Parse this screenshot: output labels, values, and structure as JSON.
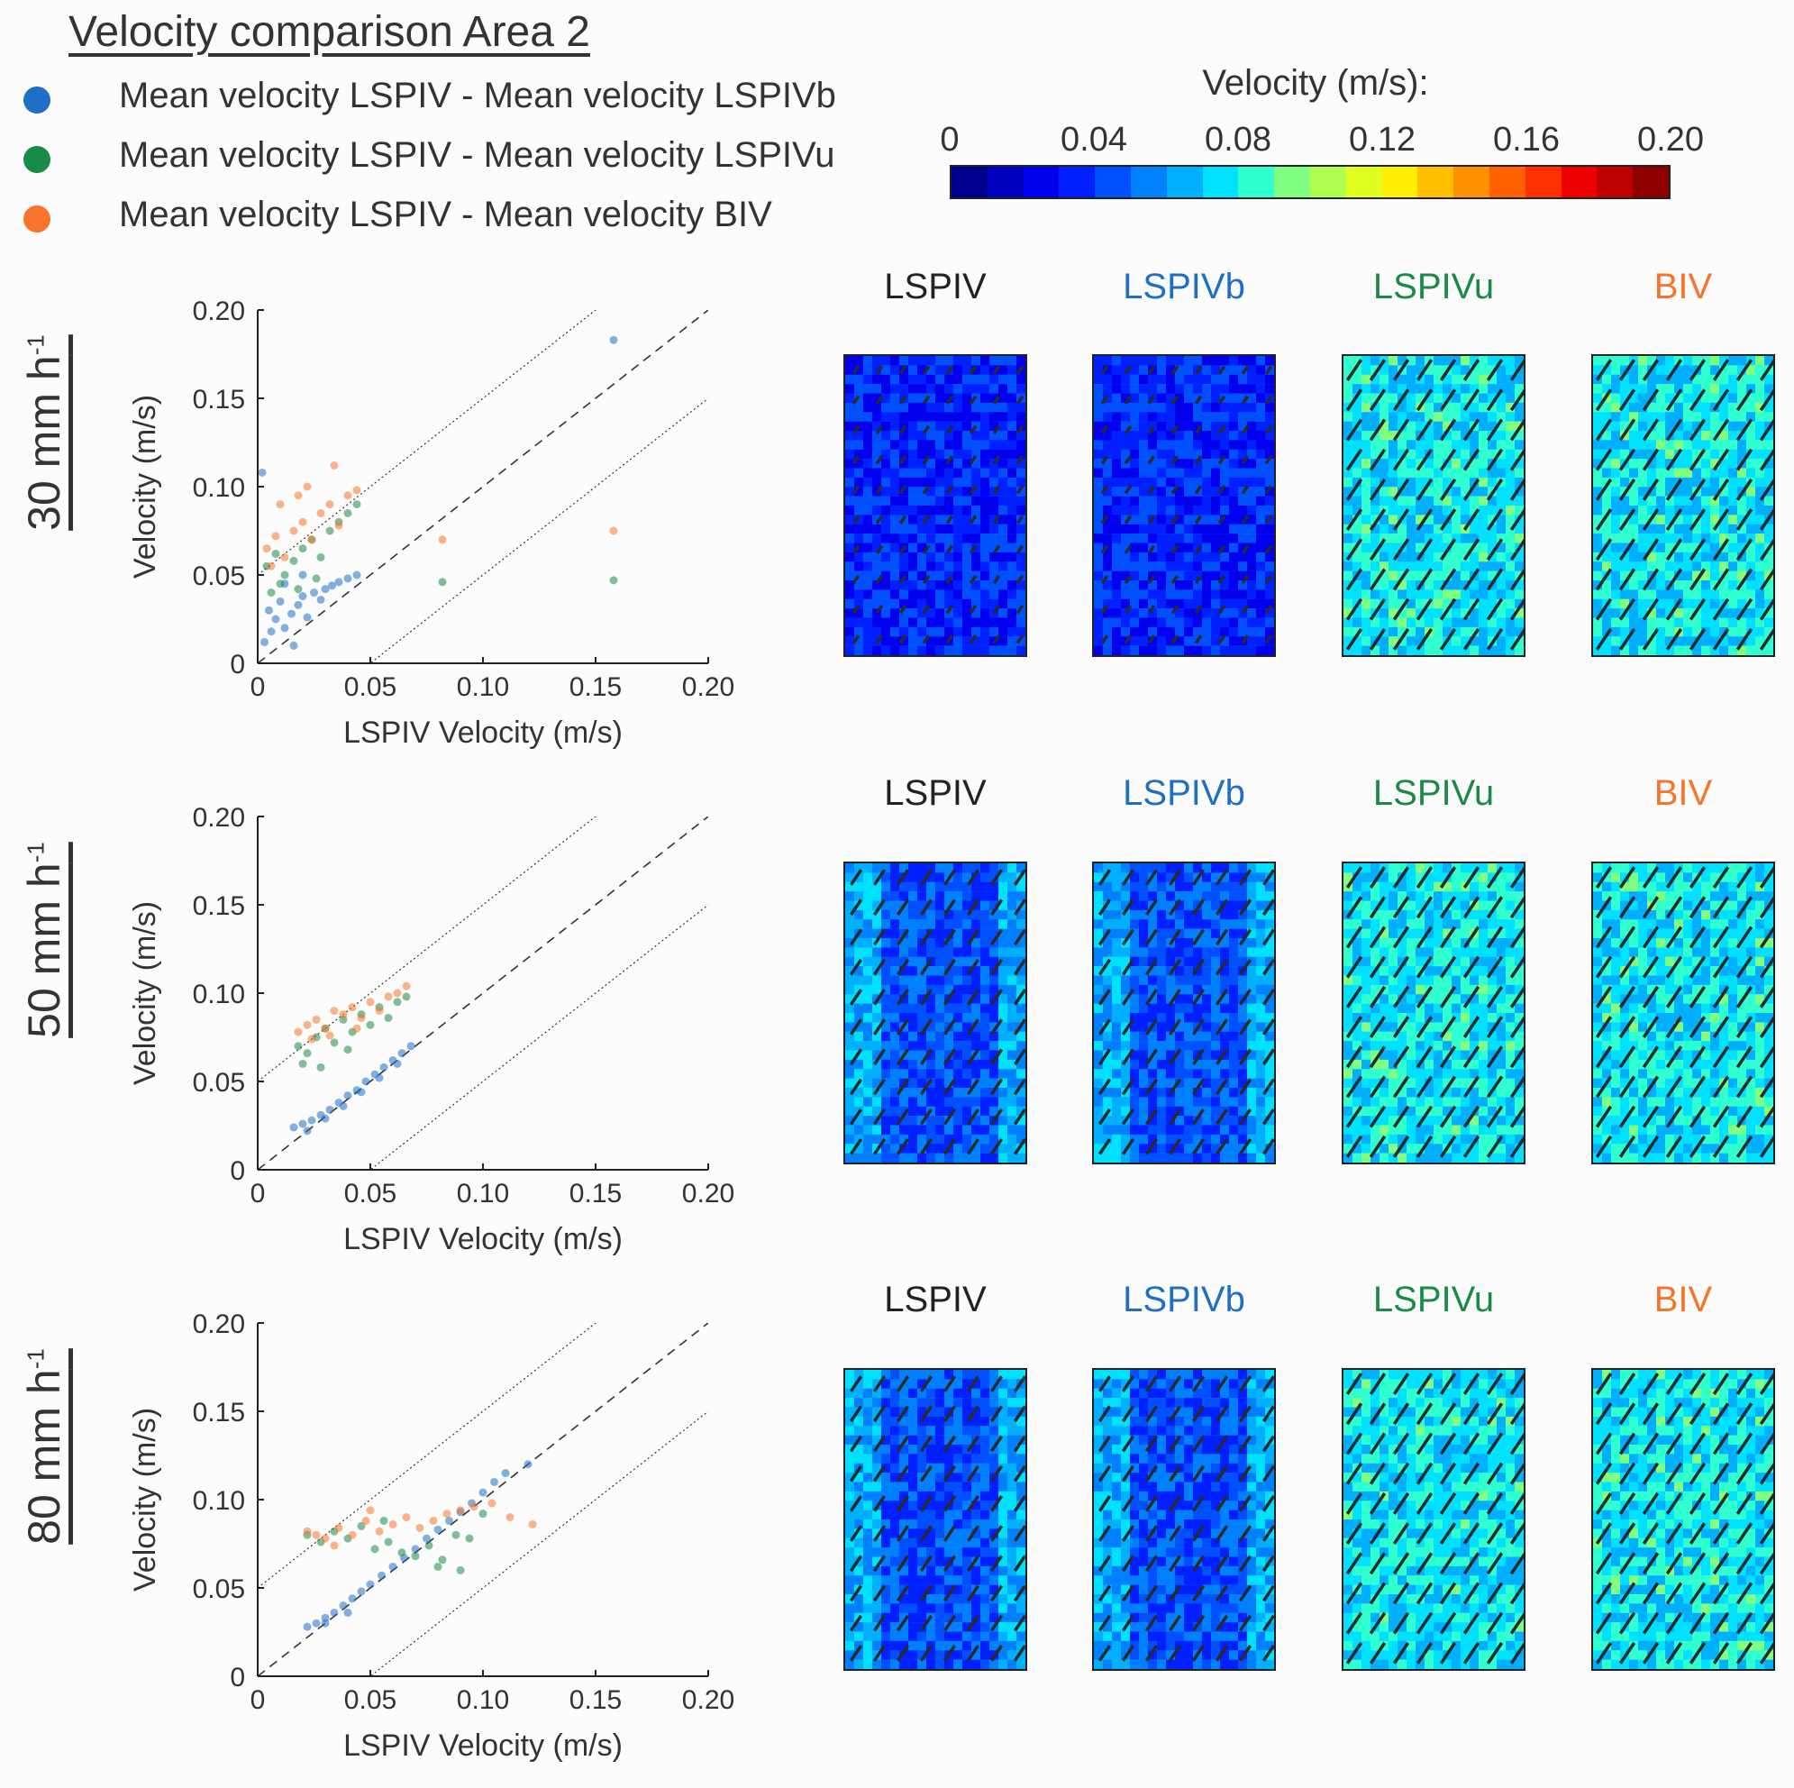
{
  "title": "Velocity comparison Area 2",
  "legend": [
    {
      "label": "Mean velocity LSPIV - Mean velocity LSPIVb",
      "color": "#1f6fc5"
    },
    {
      "label": "Mean velocity LSPIV - Mean velocity LSPIVu",
      "color": "#1a8a47"
    },
    {
      "label": "Mean velocity LSPIV - Mean velocity BIV",
      "color": "#f7742a"
    }
  ],
  "colorbar": {
    "title": "Velocity (m/s):",
    "ticks": [
      "0",
      "0.04",
      "0.08",
      "0.12",
      "0.16",
      "0.20"
    ],
    "range": [
      0,
      0.2
    ],
    "colors": [
      "#00008f",
      "#0000bf",
      "#0000ef",
      "#0020ff",
      "#0050ff",
      "#0080ff",
      "#00b0ff",
      "#00e0ff",
      "#30ffcf",
      "#80ff80",
      "#b0ff50",
      "#e0ff20",
      "#ffef00",
      "#ffbf00",
      "#ff9000",
      "#ff6000",
      "#ff3000",
      "#ef0000",
      "#bf0000",
      "#8f0000"
    ]
  },
  "rows": [
    {
      "label_main": "30 mm h",
      "label_sup": "-1"
    },
    {
      "label_main": "50 mm h",
      "label_sup": "-1"
    },
    {
      "label_main": "80 mm h",
      "label_sup": "-1"
    }
  ],
  "map_titles": [
    {
      "text": "LSPIV",
      "color": "#222222"
    },
    {
      "text": "LSPIVb",
      "color": "#1f6fc5"
    },
    {
      "text": "LSPIVu",
      "color": "#1a8a47"
    },
    {
      "text": "BIV",
      "color": "#f7742a"
    }
  ],
  "chart_data": [
    {
      "type": "scatter",
      "xlabel": "LSPIV Velocity (m/s)",
      "ylabel": "Velocity (m/s)",
      "xlim": [
        0,
        0.2
      ],
      "ylim": [
        0,
        0.2
      ],
      "xticks": [
        "0",
        "0.05",
        "0.10",
        "0.15",
        "0.20"
      ],
      "yticks": [
        "0",
        "0.05",
        "0.10",
        "0.15",
        "0.20"
      ],
      "reference_lines": [
        {
          "kind": "1:1",
          "style": "dashed",
          "offset": 0
        },
        {
          "kind": "1:1 + 0.05",
          "style": "dotted",
          "offset": 0.05
        },
        {
          "kind": "1:1 - 0.05",
          "style": "dotted",
          "offset": -0.05
        }
      ],
      "series": [
        {
          "name": "Mean velocity LSPIV - Mean velocity LSPIVb",
          "color": "#1f6fc5",
          "points": [
            [
              0.005,
              0.03
            ],
            [
              0.008,
              0.025
            ],
            [
              0.01,
              0.035
            ],
            [
              0.012,
              0.02
            ],
            [
              0.015,
              0.028
            ],
            [
              0.018,
              0.033
            ],
            [
              0.02,
              0.038
            ],
            [
              0.022,
              0.026
            ],
            [
              0.025,
              0.04
            ],
            [
              0.028,
              0.036
            ],
            [
              0.03,
              0.042
            ],
            [
              0.033,
              0.044
            ],
            [
              0.036,
              0.046
            ],
            [
              0.04,
              0.048
            ],
            [
              0.044,
              0.05
            ],
            [
              0.003,
              0.012
            ],
            [
              0.006,
              0.018
            ],
            [
              0.012,
              0.045
            ],
            [
              0.016,
              0.01
            ],
            [
              0.02,
              0.05
            ],
            [
              0.002,
              0.108
            ],
            [
              0.158,
              0.183
            ]
          ]
        },
        {
          "name": "Mean velocity LSPIV - Mean velocity LSPIVu",
          "color": "#1a8a47",
          "points": [
            [
              0.004,
              0.055
            ],
            [
              0.008,
              0.062
            ],
            [
              0.012,
              0.05
            ],
            [
              0.016,
              0.058
            ],
            [
              0.02,
              0.065
            ],
            [
              0.024,
              0.07
            ],
            [
              0.028,
              0.06
            ],
            [
              0.032,
              0.075
            ],
            [
              0.036,
              0.08
            ],
            [
              0.04,
              0.085
            ],
            [
              0.044,
              0.09
            ],
            [
              0.01,
              0.045
            ],
            [
              0.018,
              0.042
            ],
            [
              0.026,
              0.048
            ],
            [
              0.006,
              0.04
            ],
            [
              0.082,
              0.046
            ],
            [
              0.158,
              0.047
            ]
          ]
        },
        {
          "name": "Mean velocity LSPIV - Mean velocity BIV",
          "color": "#f7742a",
          "points": [
            [
              0.004,
              0.065
            ],
            [
              0.008,
              0.072
            ],
            [
              0.012,
              0.06
            ],
            [
              0.016,
              0.075
            ],
            [
              0.02,
              0.08
            ],
            [
              0.024,
              0.07
            ],
            [
              0.028,
              0.085
            ],
            [
              0.032,
              0.09
            ],
            [
              0.036,
              0.078
            ],
            [
              0.04,
              0.095
            ],
            [
              0.044,
              0.098
            ],
            [
              0.01,
              0.09
            ],
            [
              0.018,
              0.095
            ],
            [
              0.006,
              0.055
            ],
            [
              0.022,
              0.1
            ],
            [
              0.034,
              0.112
            ],
            [
              0.082,
              0.07
            ],
            [
              0.158,
              0.075
            ]
          ]
        }
      ]
    },
    {
      "type": "scatter",
      "xlabel": "LSPIV Velocity (m/s)",
      "ylabel": "Velocity (m/s)",
      "xlim": [
        0,
        0.2
      ],
      "ylim": [
        0,
        0.2
      ],
      "xticks": [
        "0",
        "0.05",
        "0.10",
        "0.15",
        "0.20"
      ],
      "yticks": [
        "0",
        "0.05",
        "0.10",
        "0.15",
        "0.20"
      ],
      "reference_lines": [
        {
          "kind": "1:1",
          "style": "dashed",
          "offset": 0
        },
        {
          "kind": "1:1 + 0.05",
          "style": "dotted",
          "offset": 0.05
        },
        {
          "kind": "1:1 - 0.05",
          "style": "dotted",
          "offset": -0.05
        }
      ],
      "series": [
        {
          "name": "Mean velocity LSPIV - Mean velocity LSPIVb",
          "color": "#1f6fc5",
          "points": [
            [
              0.016,
              0.024
            ],
            [
              0.02,
              0.026
            ],
            [
              0.024,
              0.028
            ],
            [
              0.028,
              0.031
            ],
            [
              0.032,
              0.034
            ],
            [
              0.036,
              0.038
            ],
            [
              0.04,
              0.042
            ],
            [
              0.044,
              0.045
            ],
            [
              0.048,
              0.05
            ],
            [
              0.052,
              0.054
            ],
            [
              0.056,
              0.058
            ],
            [
              0.06,
              0.062
            ],
            [
              0.064,
              0.066
            ],
            [
              0.068,
              0.07
            ],
            [
              0.022,
              0.022
            ],
            [
              0.03,
              0.029
            ],
            [
              0.038,
              0.036
            ],
            [
              0.046,
              0.044
            ],
            [
              0.054,
              0.052
            ],
            [
              0.062,
              0.06
            ]
          ]
        },
        {
          "name": "Mean velocity LSPIV - Mean velocity LSPIVu",
          "color": "#1a8a47",
          "points": [
            [
              0.018,
              0.07
            ],
            [
              0.022,
              0.066
            ],
            [
              0.026,
              0.075
            ],
            [
              0.03,
              0.08
            ],
            [
              0.034,
              0.072
            ],
            [
              0.038,
              0.085
            ],
            [
              0.042,
              0.078
            ],
            [
              0.046,
              0.088
            ],
            [
              0.05,
              0.082
            ],
            [
              0.054,
              0.092
            ],
            [
              0.058,
              0.086
            ],
            [
              0.062,
              0.095
            ],
            [
              0.066,
              0.098
            ],
            [
              0.02,
              0.06
            ],
            [
              0.028,
              0.058
            ],
            [
              0.04,
              0.068
            ]
          ]
        },
        {
          "name": "Mean velocity LSPIV - Mean velocity BIV",
          "color": "#f7742a",
          "points": [
            [
              0.018,
              0.078
            ],
            [
              0.022,
              0.082
            ],
            [
              0.026,
              0.085
            ],
            [
              0.03,
              0.08
            ],
            [
              0.034,
              0.09
            ],
            [
              0.038,
              0.088
            ],
            [
              0.042,
              0.092
            ],
            [
              0.046,
              0.086
            ],
            [
              0.05,
              0.095
            ],
            [
              0.054,
              0.09
            ],
            [
              0.058,
              0.098
            ],
            [
              0.062,
              0.1
            ],
            [
              0.066,
              0.104
            ],
            [
              0.024,
              0.074
            ],
            [
              0.032,
              0.076
            ],
            [
              0.044,
              0.08
            ]
          ]
        }
      ]
    },
    {
      "type": "scatter",
      "xlabel": "LSPIV Velocity (m/s)",
      "ylabel": "Velocity (m/s)",
      "xlim": [
        0,
        0.2
      ],
      "ylim": [
        0,
        0.2
      ],
      "xticks": [
        "0",
        "0.05",
        "0.10",
        "0.15",
        "0.20"
      ],
      "yticks": [
        "0",
        "0.05",
        "0.10",
        "0.15",
        "0.20"
      ],
      "reference_lines": [
        {
          "kind": "1:1",
          "style": "dashed",
          "offset": 0
        },
        {
          "kind": "1:1 + 0.05",
          "style": "dotted",
          "offset": 0.05
        },
        {
          "kind": "1:1 - 0.05",
          "style": "dotted",
          "offset": -0.05
        }
      ],
      "series": [
        {
          "name": "Mean velocity LSPIV - Mean velocity LSPIVb",
          "color": "#1f6fc5",
          "points": [
            [
              0.022,
              0.028
            ],
            [
              0.026,
              0.03
            ],
            [
              0.03,
              0.033
            ],
            [
              0.034,
              0.036
            ],
            [
              0.038,
              0.04
            ],
            [
              0.042,
              0.044
            ],
            [
              0.046,
              0.048
            ],
            [
              0.05,
              0.052
            ],
            [
              0.055,
              0.057
            ],
            [
              0.06,
              0.062
            ],
            [
              0.065,
              0.067
            ],
            [
              0.07,
              0.072
            ],
            [
              0.075,
              0.078
            ],
            [
              0.08,
              0.083
            ],
            [
              0.085,
              0.088
            ],
            [
              0.09,
              0.093
            ],
            [
              0.095,
              0.098
            ],
            [
              0.1,
              0.104
            ],
            [
              0.105,
              0.11
            ],
            [
              0.11,
              0.115
            ],
            [
              0.12,
              0.12
            ],
            [
              0.03,
              0.03
            ],
            [
              0.04,
              0.036
            ]
          ]
        },
        {
          "name": "Mean velocity LSPIV - Mean velocity LSPIVu",
          "color": "#1a8a47",
          "points": [
            [
              0.022,
              0.08
            ],
            [
              0.028,
              0.076
            ],
            [
              0.034,
              0.082
            ],
            [
              0.04,
              0.078
            ],
            [
              0.046,
              0.085
            ],
            [
              0.052,
              0.072
            ],
            [
              0.058,
              0.076
            ],
            [
              0.064,
              0.07
            ],
            [
              0.07,
              0.068
            ],
            [
              0.076,
              0.074
            ],
            [
              0.082,
              0.066
            ],
            [
              0.088,
              0.08
            ],
            [
              0.094,
              0.078
            ],
            [
              0.1,
              0.092
            ],
            [
              0.09,
              0.06
            ],
            [
              0.08,
              0.062
            ],
            [
              0.056,
              0.088
            ]
          ]
        },
        {
          "name": "Mean velocity LSPIV - Mean velocity BIV",
          "color": "#f7742a",
          "points": [
            [
              0.022,
              0.082
            ],
            [
              0.026,
              0.08
            ],
            [
              0.03,
              0.078
            ],
            [
              0.036,
              0.084
            ],
            [
              0.042,
              0.08
            ],
            [
              0.048,
              0.088
            ],
            [
              0.054,
              0.082
            ],
            [
              0.06,
              0.086
            ],
            [
              0.066,
              0.09
            ],
            [
              0.072,
              0.084
            ],
            [
              0.078,
              0.088
            ],
            [
              0.084,
              0.092
            ],
            [
              0.09,
              0.094
            ],
            [
              0.096,
              0.096
            ],
            [
              0.104,
              0.098
            ],
            [
              0.112,
              0.09
            ],
            [
              0.122,
              0.086
            ],
            [
              0.05,
              0.094
            ],
            [
              0.034,
              0.074
            ]
          ]
        }
      ]
    }
  ]
}
